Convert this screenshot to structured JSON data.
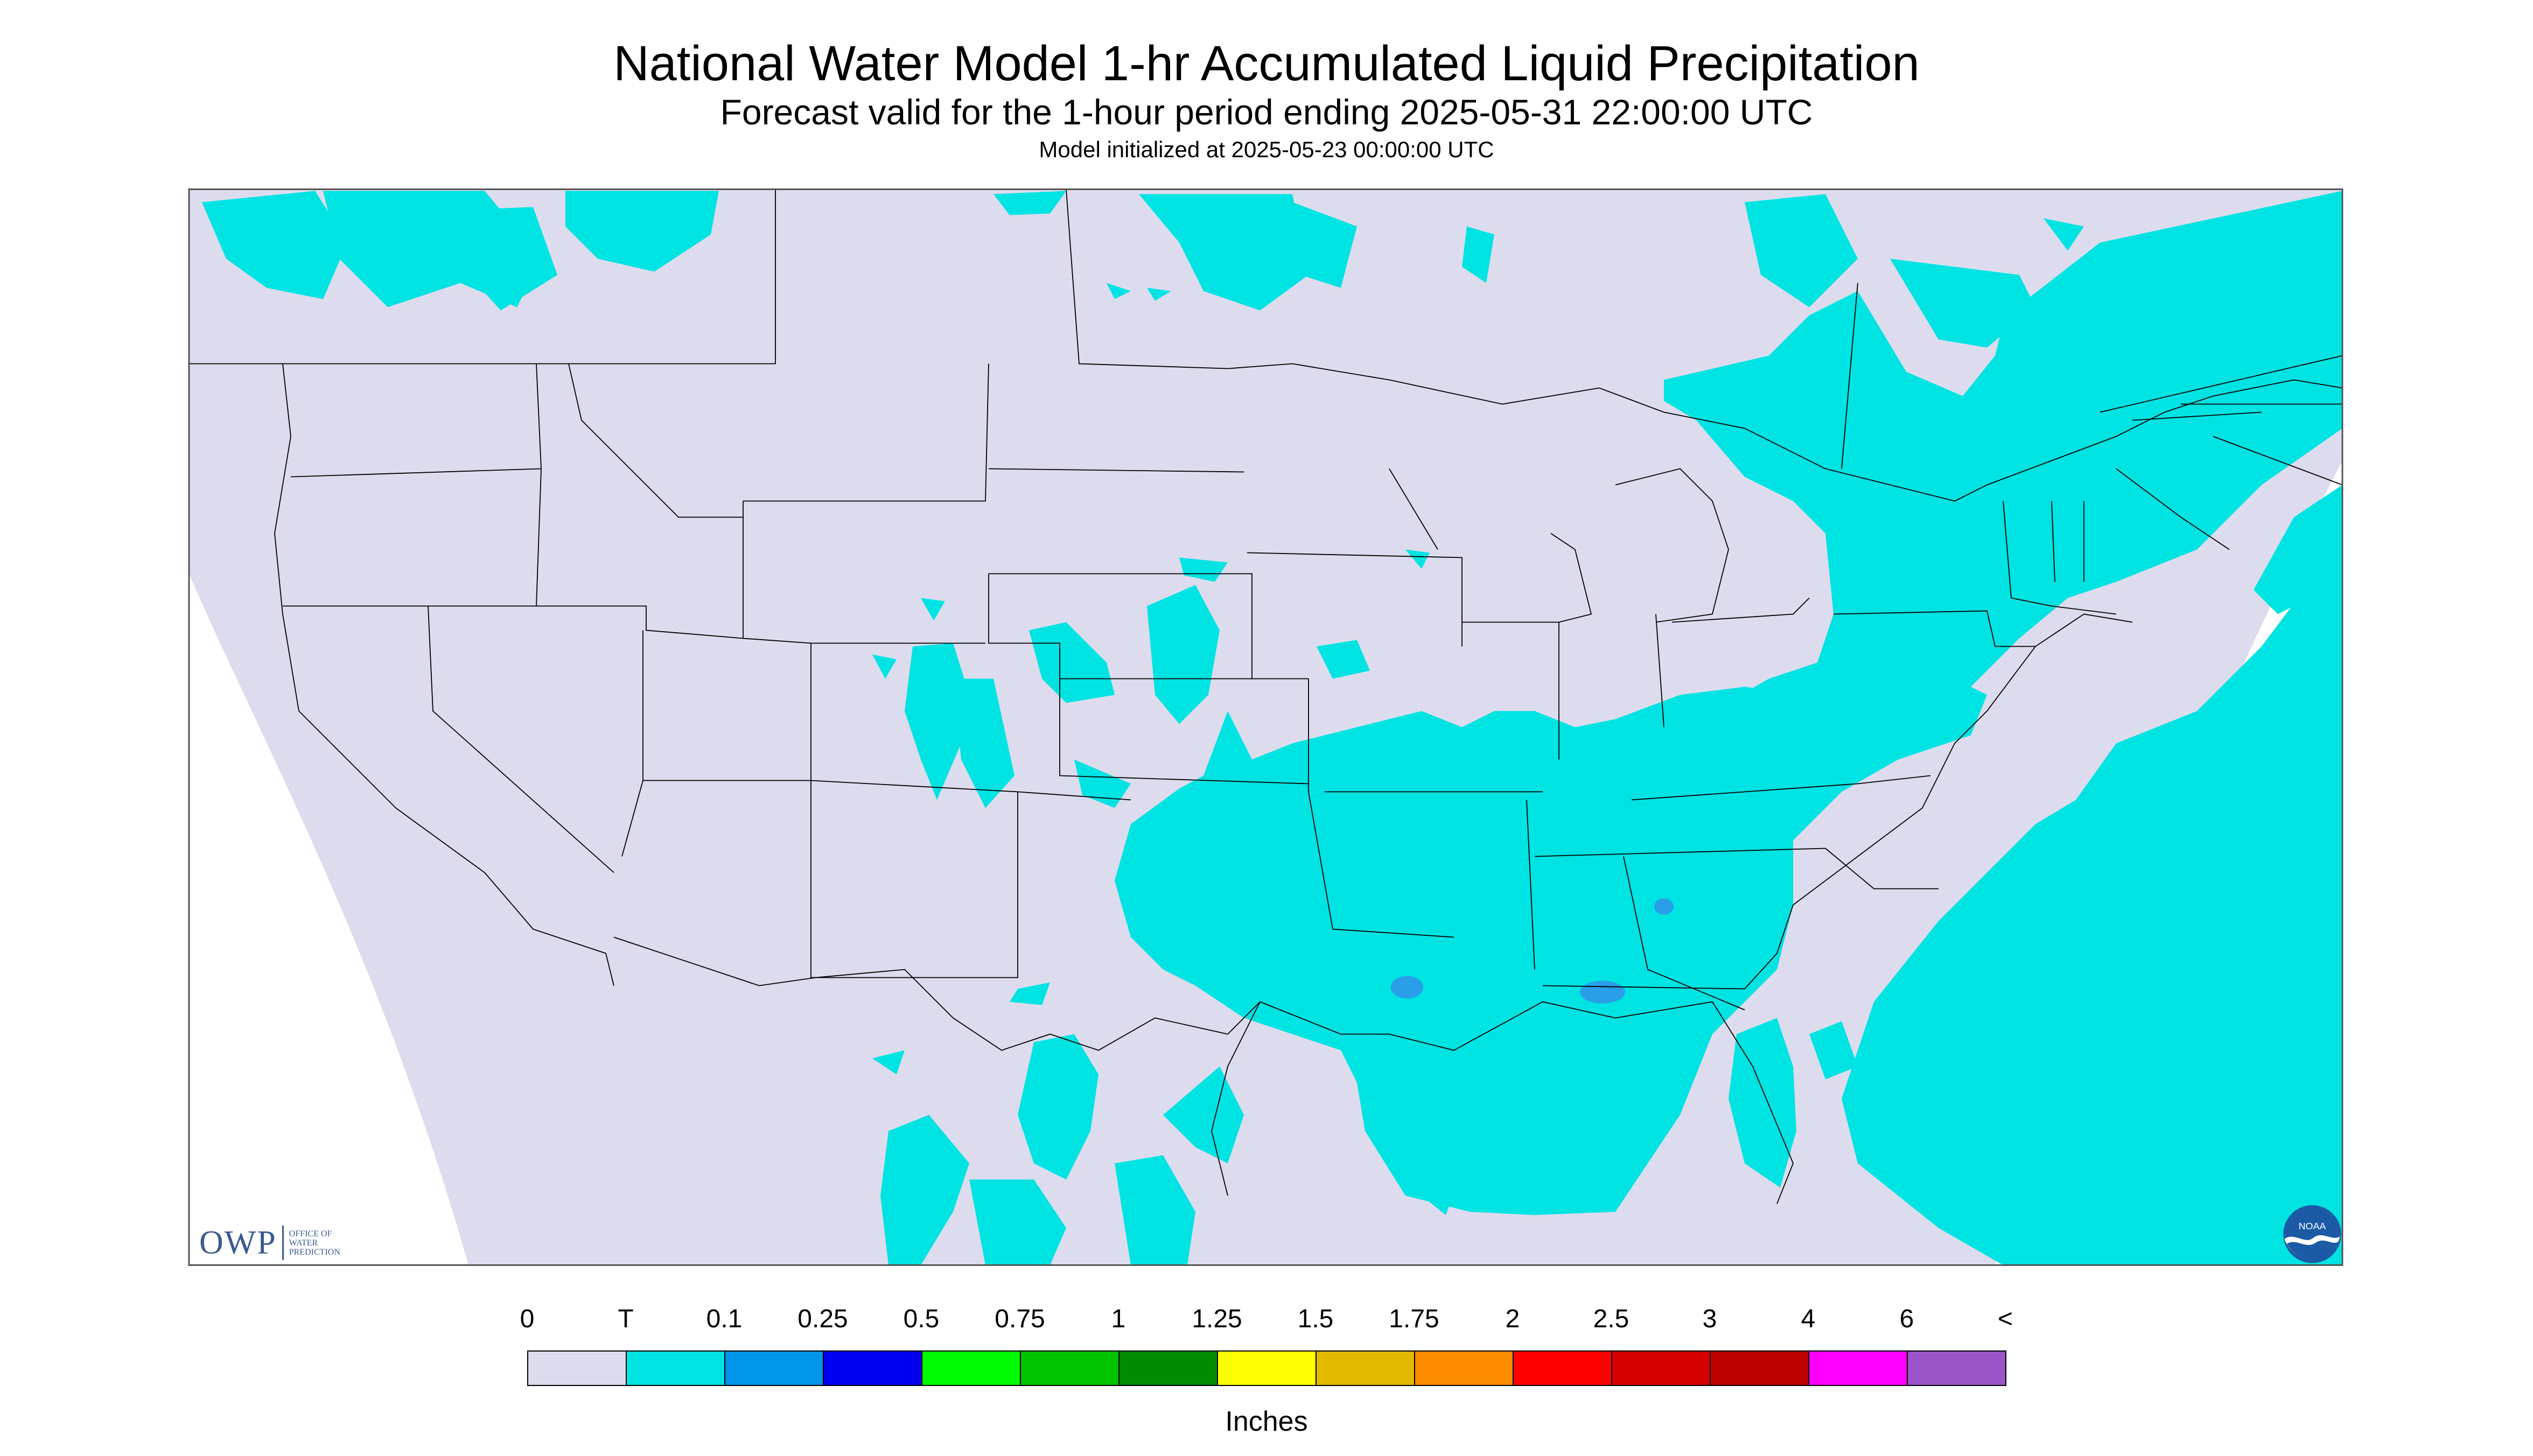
{
  "header": {
    "title": "National Water Model 1-hr Accumulated Liquid Precipitation",
    "subtitle": "Forecast valid for the 1-hour period ending 2025-05-31 22:00:00 UTC",
    "init": "Model initialized at 2025-05-23 00:00:00 UTC"
  },
  "logos": {
    "owp_letters": "OWP",
    "owp_lines": [
      "OFFICE OF",
      "WATER",
      "PREDICTION"
    ],
    "noaa": "NOAA"
  },
  "colorbar": {
    "labels": [
      "0",
      "T",
      "0.1",
      "0.25",
      "0.5",
      "0.75",
      "1",
      "1.25",
      "1.5",
      "1.75",
      "2",
      "2.5",
      "3",
      "4",
      "6",
      "<"
    ],
    "colors": [
      "#dcdcee",
      "#00e3e3",
      "#0095ea",
      "#0000f0",
      "#00fb00",
      "#00c300",
      "#008b00",
      "#ffff00",
      "#e3b900",
      "#ff8b00",
      "#ff0000",
      "#d60000",
      "#bb0000",
      "#ff00ff",
      "#9955c8"
    ],
    "units": "Inches"
  },
  "colors": {
    "no_precip": "#dcdcee",
    "trace": "#00e3e3",
    "light": "#2a9ee8",
    "outside_domain": "#ffffff",
    "borders": "#000000"
  }
}
